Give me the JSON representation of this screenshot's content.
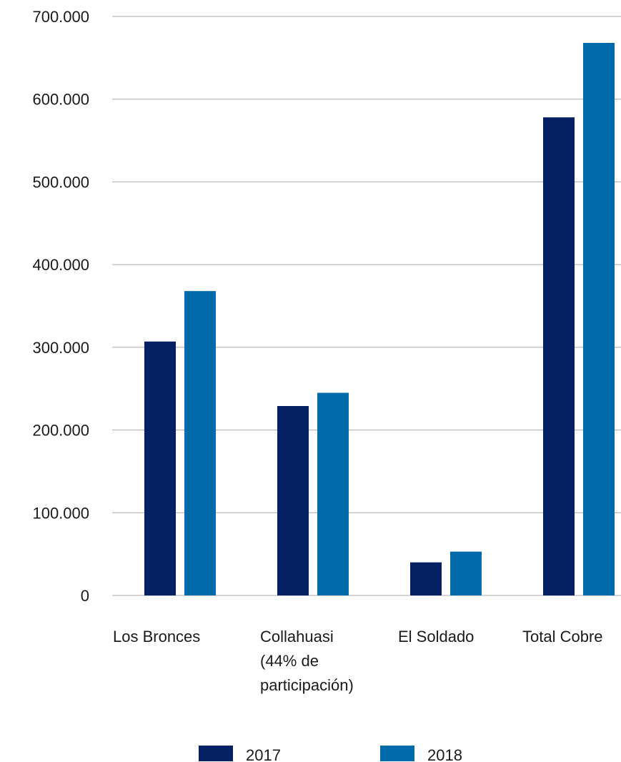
{
  "chart_data": {
    "type": "bar",
    "categories": [
      [
        "Los Bronces"
      ],
      [
        "Collahuasi",
        "(44% de",
        "participación)"
      ],
      [
        "El Soldado"
      ],
      [
        "Total Cobre"
      ]
    ],
    "series": [
      {
        "name": "2017",
        "color": "#052164",
        "values": [
          307000,
          229000,
          40000,
          578000
        ]
      },
      {
        "name": "2018",
        "color": "#006AAB",
        "values": [
          368000,
          245000,
          53000,
          668000
        ]
      }
    ],
    "y_ticks": [
      {
        "value": 0,
        "label": "0"
      },
      {
        "value": 100000,
        "label": "100.000"
      },
      {
        "value": 200000,
        "label": "200.000"
      },
      {
        "value": 300000,
        "label": "300.000"
      },
      {
        "value": 400000,
        "label": "400.000"
      },
      {
        "value": 500000,
        "label": "500.000"
      },
      {
        "value": 600000,
        "label": "600.000"
      },
      {
        "value": 700000,
        "label": "700.000"
      }
    ],
    "ylim": [
      0,
      700000
    ],
    "grid": true,
    "legend_position": "bottom",
    "gridline_color": "#aaaaaa"
  }
}
